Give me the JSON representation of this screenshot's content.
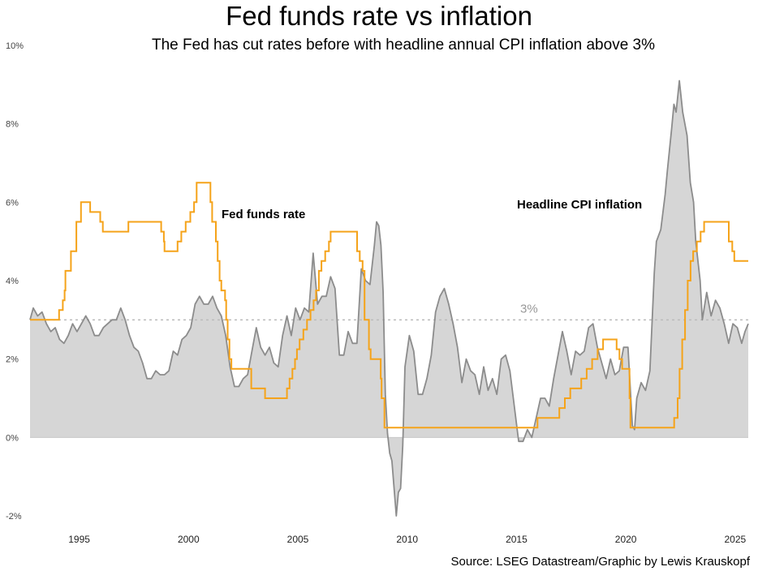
{
  "chart_data": {
    "type": "line",
    "title": "Fed funds rate vs inflation",
    "subtitle": "The Fed has cut rates before with headline annual CPI inflation above 3%",
    "source": "Source: LSEG Datastream/Graphic by Lewis Krauskopf",
    "xlim": [
      1992.75,
      2025.6
    ],
    "ylim": [
      -2,
      10
    ],
    "x_ticks": [
      1995,
      2000,
      2005,
      2010,
      2015,
      2020,
      2025
    ],
    "y_ticks": [
      -2,
      0,
      2,
      4,
      6,
      8,
      10
    ],
    "y_tick_labels": [
      "-2%",
      "0%",
      "2%",
      "4%",
      "6%",
      "8%",
      "10%"
    ],
    "grid": false,
    "reference_line": {
      "value": 3,
      "label": "3%",
      "color": "#bbbbbb"
    },
    "annotations": [
      {
        "text": "Fed funds rate",
        "series": "Fed funds rate"
      },
      {
        "text": "Headline CPI inflation",
        "series": "Headline CPI inflation"
      }
    ],
    "series": [
      {
        "name": "Fed funds rate",
        "kind": "step",
        "color": "#f5a31a",
        "points": [
          [
            1992.75,
            3.0
          ],
          [
            1994.08,
            3.25
          ],
          [
            1994.25,
            3.5
          ],
          [
            1994.33,
            3.75
          ],
          [
            1994.37,
            4.25
          ],
          [
            1994.62,
            4.75
          ],
          [
            1994.87,
            5.5
          ],
          [
            1995.08,
            6.0
          ],
          [
            1995.5,
            5.75
          ],
          [
            1995.96,
            5.5
          ],
          [
            1996.08,
            5.25
          ],
          [
            1997.25,
            5.5
          ],
          [
            1998.75,
            5.25
          ],
          [
            1998.87,
            5.0
          ],
          [
            1998.9,
            4.75
          ],
          [
            1999.5,
            5.0
          ],
          [
            1999.67,
            5.25
          ],
          [
            1999.87,
            5.5
          ],
          [
            2000.08,
            5.75
          ],
          [
            2000.25,
            6.0
          ],
          [
            2000.37,
            6.5
          ],
          [
            2001.0,
            6.0
          ],
          [
            2001.08,
            5.5
          ],
          [
            2001.25,
            5.0
          ],
          [
            2001.33,
            4.5
          ],
          [
            2001.42,
            4.0
          ],
          [
            2001.5,
            3.75
          ],
          [
            2001.67,
            3.5
          ],
          [
            2001.72,
            3.0
          ],
          [
            2001.79,
            2.5
          ],
          [
            2001.87,
            2.0
          ],
          [
            2001.96,
            1.75
          ],
          [
            2002.87,
            1.25
          ],
          [
            2003.5,
            1.0
          ],
          [
            2004.5,
            1.25
          ],
          [
            2004.62,
            1.5
          ],
          [
            2004.75,
            1.75
          ],
          [
            2004.87,
            2.0
          ],
          [
            2004.96,
            2.25
          ],
          [
            2005.08,
            2.5
          ],
          [
            2005.25,
            2.75
          ],
          [
            2005.42,
            3.0
          ],
          [
            2005.58,
            3.25
          ],
          [
            2005.72,
            3.5
          ],
          [
            2005.83,
            3.75
          ],
          [
            2005.96,
            4.25
          ],
          [
            2006.08,
            4.5
          ],
          [
            2006.25,
            4.75
          ],
          [
            2006.42,
            5.0
          ],
          [
            2006.5,
            5.25
          ],
          [
            2007.71,
            4.75
          ],
          [
            2007.83,
            4.5
          ],
          [
            2007.96,
            4.25
          ],
          [
            2008.05,
            3.0
          ],
          [
            2008.25,
            2.25
          ],
          [
            2008.33,
            2.0
          ],
          [
            2008.79,
            1.5
          ],
          [
            2008.83,
            1.0
          ],
          [
            2008.96,
            0.25
          ],
          [
            2015.96,
            0.5
          ],
          [
            2016.96,
            0.75
          ],
          [
            2017.21,
            1.0
          ],
          [
            2017.46,
            1.25
          ],
          [
            2017.96,
            1.5
          ],
          [
            2018.21,
            1.75
          ],
          [
            2018.46,
            2.0
          ],
          [
            2018.71,
            2.25
          ],
          [
            2018.96,
            2.5
          ],
          [
            2019.58,
            2.25
          ],
          [
            2019.71,
            2.0
          ],
          [
            2019.83,
            1.75
          ],
          [
            2020.17,
            1.0
          ],
          [
            2020.21,
            0.25
          ],
          [
            2022.21,
            0.5
          ],
          [
            2022.37,
            1.0
          ],
          [
            2022.46,
            1.75
          ],
          [
            2022.58,
            2.5
          ],
          [
            2022.71,
            3.25
          ],
          [
            2022.83,
            4.0
          ],
          [
            2022.96,
            4.5
          ],
          [
            2023.08,
            4.75
          ],
          [
            2023.25,
            5.0
          ],
          [
            2023.42,
            5.25
          ],
          [
            2023.58,
            5.5
          ],
          [
            2024.71,
            5.0
          ],
          [
            2024.87,
            4.75
          ],
          [
            2024.96,
            4.5
          ],
          [
            2025.6,
            4.5
          ]
        ]
      },
      {
        "name": "Headline CPI inflation",
        "kind": "area",
        "color": "#8c8c8c",
        "fill": "#d6d6d6",
        "points": [
          [
            1992.75,
            3.0
          ],
          [
            1992.9,
            3.3
          ],
          [
            1993.1,
            3.1
          ],
          [
            1993.3,
            3.2
          ],
          [
            1993.5,
            2.9
          ],
          [
            1993.7,
            2.7
          ],
          [
            1993.9,
            2.8
          ],
          [
            1994.1,
            2.5
          ],
          [
            1994.3,
            2.4
          ],
          [
            1994.5,
            2.6
          ],
          [
            1994.7,
            2.9
          ],
          [
            1994.9,
            2.7
          ],
          [
            1995.1,
            2.9
          ],
          [
            1995.3,
            3.1
          ],
          [
            1995.5,
            2.9
          ],
          [
            1995.7,
            2.6
          ],
          [
            1995.9,
            2.6
          ],
          [
            1996.1,
            2.8
          ],
          [
            1996.3,
            2.9
          ],
          [
            1996.5,
            3.0
          ],
          [
            1996.7,
            3.0
          ],
          [
            1996.9,
            3.3
          ],
          [
            1997.1,
            3.0
          ],
          [
            1997.3,
            2.6
          ],
          [
            1997.5,
            2.3
          ],
          [
            1997.7,
            2.2
          ],
          [
            1997.9,
            1.9
          ],
          [
            1998.1,
            1.5
          ],
          [
            1998.3,
            1.5
          ],
          [
            1998.5,
            1.7
          ],
          [
            1998.7,
            1.6
          ],
          [
            1998.9,
            1.6
          ],
          [
            1999.1,
            1.7
          ],
          [
            1999.3,
            2.2
          ],
          [
            1999.5,
            2.1
          ],
          [
            1999.7,
            2.5
          ],
          [
            1999.9,
            2.6
          ],
          [
            2000.1,
            2.8
          ],
          [
            2000.3,
            3.4
          ],
          [
            2000.5,
            3.6
          ],
          [
            2000.7,
            3.4
          ],
          [
            2000.9,
            3.4
          ],
          [
            2001.1,
            3.6
          ],
          [
            2001.3,
            3.3
          ],
          [
            2001.5,
            3.1
          ],
          [
            2001.7,
            2.6
          ],
          [
            2001.9,
            1.8
          ],
          [
            2002.1,
            1.3
          ],
          [
            2002.3,
            1.3
          ],
          [
            2002.5,
            1.5
          ],
          [
            2002.7,
            1.6
          ],
          [
            2002.9,
            2.2
          ],
          [
            2003.1,
            2.8
          ],
          [
            2003.3,
            2.3
          ],
          [
            2003.5,
            2.1
          ],
          [
            2003.7,
            2.3
          ],
          [
            2003.9,
            1.9
          ],
          [
            2004.1,
            1.8
          ],
          [
            2004.3,
            2.6
          ],
          [
            2004.5,
            3.1
          ],
          [
            2004.7,
            2.6
          ],
          [
            2004.9,
            3.3
          ],
          [
            2005.1,
            3.0
          ],
          [
            2005.3,
            3.3
          ],
          [
            2005.5,
            3.2
          ],
          [
            2005.7,
            4.7
          ],
          [
            2005.9,
            3.4
          ],
          [
            2006.1,
            3.6
          ],
          [
            2006.3,
            3.6
          ],
          [
            2006.5,
            4.1
          ],
          [
            2006.7,
            3.8
          ],
          [
            2006.9,
            2.1
          ],
          [
            2007.1,
            2.1
          ],
          [
            2007.3,
            2.7
          ],
          [
            2007.5,
            2.4
          ],
          [
            2007.7,
            2.4
          ],
          [
            2007.9,
            4.3
          ],
          [
            2008.1,
            4.0
          ],
          [
            2008.3,
            3.9
          ],
          [
            2008.5,
            4.9
          ],
          [
            2008.6,
            5.5
          ],
          [
            2008.7,
            5.4
          ],
          [
            2008.8,
            4.9
          ],
          [
            2008.9,
            3.7
          ],
          [
            2009.0,
            1.1
          ],
          [
            2009.1,
            0.1
          ],
          [
            2009.2,
            -0.4
          ],
          [
            2009.3,
            -0.6
          ],
          [
            2009.4,
            -1.3
          ],
          [
            2009.5,
            -2.0
          ],
          [
            2009.6,
            -1.4
          ],
          [
            2009.7,
            -1.3
          ],
          [
            2009.8,
            -0.2
          ],
          [
            2009.9,
            1.8
          ],
          [
            2010.1,
            2.6
          ],
          [
            2010.3,
            2.2
          ],
          [
            2010.5,
            1.1
          ],
          [
            2010.7,
            1.1
          ],
          [
            2010.9,
            1.5
          ],
          [
            2011.1,
            2.1
          ],
          [
            2011.3,
            3.2
          ],
          [
            2011.5,
            3.6
          ],
          [
            2011.7,
            3.8
          ],
          [
            2011.9,
            3.4
          ],
          [
            2012.1,
            2.9
          ],
          [
            2012.3,
            2.3
          ],
          [
            2012.5,
            1.4
          ],
          [
            2012.7,
            2.0
          ],
          [
            2012.9,
            1.7
          ],
          [
            2013.1,
            1.6
          ],
          [
            2013.3,
            1.1
          ],
          [
            2013.5,
            1.8
          ],
          [
            2013.7,
            1.2
          ],
          [
            2013.9,
            1.5
          ],
          [
            2014.1,
            1.1
          ],
          [
            2014.3,
            2.0
          ],
          [
            2014.5,
            2.1
          ],
          [
            2014.7,
            1.7
          ],
          [
            2014.9,
            0.8
          ],
          [
            2015.1,
            -0.1
          ],
          [
            2015.3,
            -0.1
          ],
          [
            2015.5,
            0.2
          ],
          [
            2015.7,
            0.0
          ],
          [
            2015.9,
            0.5
          ],
          [
            2016.1,
            1.0
          ],
          [
            2016.3,
            1.0
          ],
          [
            2016.5,
            0.8
          ],
          [
            2016.7,
            1.5
          ],
          [
            2016.9,
            2.1
          ],
          [
            2017.1,
            2.7
          ],
          [
            2017.3,
            2.2
          ],
          [
            2017.5,
            1.6
          ],
          [
            2017.7,
            2.2
          ],
          [
            2017.9,
            2.1
          ],
          [
            2018.1,
            2.2
          ],
          [
            2018.3,
            2.8
          ],
          [
            2018.5,
            2.9
          ],
          [
            2018.7,
            2.3
          ],
          [
            2018.9,
            1.9
          ],
          [
            2019.1,
            1.5
          ],
          [
            2019.3,
            2.0
          ],
          [
            2019.5,
            1.6
          ],
          [
            2019.7,
            1.7
          ],
          [
            2019.9,
            2.3
          ],
          [
            2020.1,
            2.3
          ],
          [
            2020.3,
            0.3
          ],
          [
            2020.4,
            0.2
          ],
          [
            2020.5,
            1.0
          ],
          [
            2020.7,
            1.4
          ],
          [
            2020.9,
            1.2
          ],
          [
            2021.1,
            1.7
          ],
          [
            2021.3,
            4.2
          ],
          [
            2021.4,
            5.0
          ],
          [
            2021.6,
            5.3
          ],
          [
            2021.8,
            6.2
          ],
          [
            2021.9,
            6.8
          ],
          [
            2022.1,
            7.9
          ],
          [
            2022.2,
            8.5
          ],
          [
            2022.3,
            8.3
          ],
          [
            2022.45,
            9.1
          ],
          [
            2022.6,
            8.3
          ],
          [
            2022.8,
            7.7
          ],
          [
            2022.95,
            6.5
          ],
          [
            2023.1,
            6.0
          ],
          [
            2023.2,
            5.0
          ],
          [
            2023.4,
            4.0
          ],
          [
            2023.5,
            3.0
          ],
          [
            2023.7,
            3.7
          ],
          [
            2023.9,
            3.1
          ],
          [
            2024.1,
            3.5
          ],
          [
            2024.3,
            3.3
          ],
          [
            2024.5,
            2.9
          ],
          [
            2024.7,
            2.4
          ],
          [
            2024.9,
            2.9
          ],
          [
            2025.1,
            2.8
          ],
          [
            2025.3,
            2.4
          ],
          [
            2025.45,
            2.7
          ],
          [
            2025.6,
            2.9
          ]
        ]
      }
    ]
  }
}
